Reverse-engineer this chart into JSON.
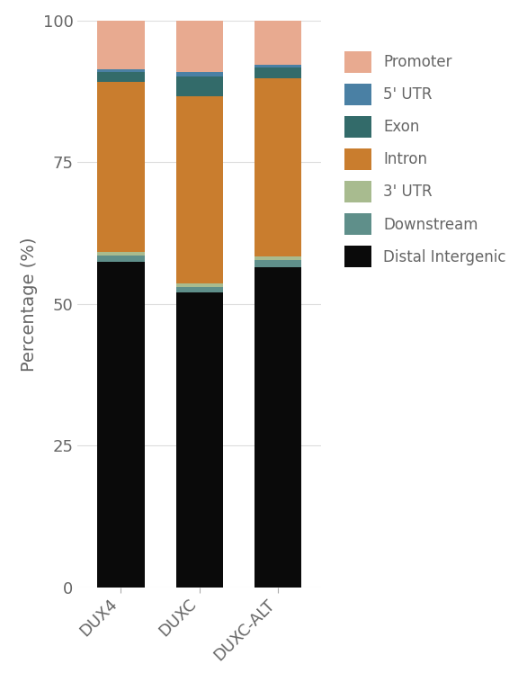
{
  "categories": [
    "DUX4",
    "DUXC",
    "DUXC-ALT"
  ],
  "segments": [
    {
      "label": "Distal Intergenic",
      "color": "#0a0a0a",
      "values": [
        57.5,
        52.0,
        56.5
      ]
    },
    {
      "label": "Downstream",
      "color": "#5f8f8a",
      "values": [
        1.0,
        1.0,
        1.2
      ]
    },
    {
      "label": "3' UTR",
      "color": "#a8bb8f",
      "values": [
        0.7,
        0.7,
        0.7
      ]
    },
    {
      "label": "Intron",
      "color": "#c97d2e",
      "values": [
        30.0,
        33.0,
        31.5
      ]
    },
    {
      "label": "Exon",
      "color": "#336b6a",
      "values": [
        1.8,
        3.5,
        1.8
      ]
    },
    {
      "label": "5' UTR",
      "color": "#4a80a4",
      "values": [
        0.5,
        0.8,
        0.5
      ]
    },
    {
      "label": "Promoter",
      "color": "#e8aa90",
      "values": [
        8.5,
        9.0,
        7.8
      ]
    }
  ],
  "ylabel": "Percentage (%)",
  "ylim": [
    0,
    100
  ],
  "yticks": [
    0,
    25,
    50,
    75,
    100
  ],
  "bar_width": 0.6,
  "background_color": "#ffffff",
  "legend_order": [
    "Promoter",
    "5' UTR",
    "Exon",
    "Intron",
    "3' UTR",
    "Downstream",
    "Distal Intergenic"
  ],
  "tick_color": "#666666",
  "grid_color": "#dddddd",
  "label_fontsize": 14,
  "tick_fontsize": 13
}
